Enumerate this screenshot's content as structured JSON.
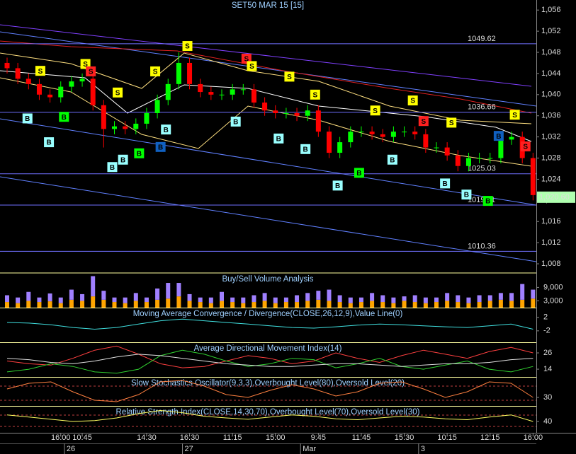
{
  "chart_data": {
    "type": "candlestick",
    "title": "SET50 MAR 15   [15]",
    "categories": [
      null,
      null,
      null,
      null,
      null,
      "16:00",
      null,
      "10:45",
      null,
      null,
      null,
      null,
      null,
      "14:30",
      null,
      null,
      null,
      "16:30",
      null,
      null,
      null,
      "11:15",
      null,
      null,
      null,
      "15:00",
      null,
      null,
      null,
      "9:45",
      null,
      null,
      null,
      "11:45",
      null,
      null,
      null,
      "15:30",
      null,
      null,
      null,
      "10:15",
      null,
      null,
      null,
      "12:15",
      null,
      null,
      null,
      "16:00"
    ],
    "dates": [
      null,
      null,
      null,
      null,
      null,
      null,
      "26",
      null,
      null,
      null,
      null,
      null,
      null,
      null,
      null,
      null,
      null,
      "27",
      null,
      null,
      null,
      null,
      null,
      null,
      null,
      null,
      null,
      null,
      "Mar",
      null,
      null,
      null,
      null,
      null,
      null,
      null,
      null,
      null,
      null,
      "3",
      null,
      null,
      null,
      null,
      null,
      null,
      null,
      null,
      null,
      null
    ],
    "open": [
      1046,
      1045,
      1043,
      1042,
      1040,
      1039.5,
      1041.5,
      1042.5,
      1043,
      1038,
      1033.5,
      1034,
      1033.5,
      1034.5,
      1036.5,
      1039,
      1042,
      1046,
      1042,
      1040.5,
      1040,
      1040,
      1041,
      1041,
      1038.5,
      1037,
      1036.5,
      1036.5,
      1036,
      1037,
      1033,
      1029,
      1031,
      1033,
      1033,
      1032.5,
      1032,
      1033,
      1033,
      1032.5,
      1030,
      1030,
      1028.5,
      1026.5,
      1028,
      1028,
      1028,
      1031.5,
      1032,
      1028
    ],
    "high": [
      1047,
      1046,
      1044,
      1043,
      1041,
      1042.5,
      1043.5,
      1044,
      1044,
      1039,
      1035,
      1035,
      1035.5,
      1037.5,
      1040,
      1043,
      1048,
      1047,
      1043,
      1041.5,
      1041,
      1042,
      1042,
      1042,
      1039.5,
      1038,
      1037.5,
      1037.5,
      1038,
      1038,
      1034,
      1032,
      1034,
      1034,
      1034,
      1033.5,
      1034,
      1034,
      1034,
      1033.5,
      1031,
      1031,
      1029.5,
      1029,
      1029,
      1029,
      1032.5,
      1033,
      1033,
      1029
    ],
    "low": [
      1044,
      1042,
      1041,
      1039,
      1038.5,
      1038.5,
      1040.5,
      1041.5,
      1037,
      1030,
      1032.5,
      1032.5,
      1032.5,
      1033.5,
      1035.5,
      1038,
      1041,
      1041,
      1039.5,
      1039,
      1039,
      1039,
      1040,
      1037.5,
      1036,
      1035.5,
      1035.5,
      1035,
      1035,
      1032,
      1028,
      1028,
      1030,
      1032,
      1031.5,
      1031,
      1031,
      1032,
      1031.5,
      1029,
      1029,
      1027.5,
      1025.5,
      1025.5,
      1027,
      1027,
      1027,
      1030.5,
      1027,
      1020
    ],
    "close": [
      1045,
      1043,
      1042,
      1040,
      1039.5,
      1041.5,
      1042.5,
      1043,
      1038,
      1033.5,
      1034,
      1033.5,
      1034.5,
      1036.5,
      1039,
      1042,
      1046,
      1042,
      1040.5,
      1040,
      1040,
      1041,
      1041,
      1038.5,
      1037,
      1036.5,
      1036.5,
      1036,
      1037,
      1033,
      1029,
      1031,
      1033,
      1033,
      1032.5,
      1032,
      1033,
      1033,
      1032.5,
      1030,
      1030,
      1028.5,
      1026.5,
      1028,
      1028,
      1028,
      1031.5,
      1032,
      1028,
      1021
    ],
    "up_color": "#00ff00",
    "down_color": "#ff0000",
    "ylim": [
      1006.4,
      1057.9
    ],
    "yticks": [
      {
        "value": 1056,
        "label": "1,056"
      },
      {
        "value": 1052,
        "label": "1,052"
      },
      {
        "value": 1048,
        "label": "1,048"
      },
      {
        "value": 1044,
        "label": "1,044"
      },
      {
        "value": 1040,
        "label": "1,040"
      },
      {
        "value": 1036,
        "label": "1,036"
      },
      {
        "value": 1032,
        "label": "1,032"
      },
      {
        "value": 1028,
        "label": "1,028"
      },
      {
        "value": 1024,
        "label": "1,024"
      },
      {
        "value": 1020,
        "label": "1,020"
      },
      {
        "value": 1016,
        "label": "1,016"
      },
      {
        "value": 1012,
        "label": "1,012"
      },
      {
        "value": 1008,
        "label": "1,008"
      }
    ],
    "levels": [
      1049.62,
      1036.66,
      1025.03,
      1019.11,
      1010.36
    ],
    "last_price": {
      "value": 1020.6,
      "label": "1,020.60"
    },
    "signals": [
      {
        "label": "S",
        "color": "#ffff00",
        "x": 3.1,
        "value": 1044.5
      },
      {
        "label": "S",
        "color": "#ffff00",
        "x": 7.3,
        "value": 1045.8
      },
      {
        "label": "S",
        "color": "#ff2020",
        "x": 7.8,
        "value": 1044.4
      },
      {
        "label": "S",
        "color": "#ffff00",
        "x": 10.3,
        "value": 1040.4
      },
      {
        "label": "S",
        "color": "#ffff00",
        "x": 13.8,
        "value": 1044.4
      },
      {
        "label": "S",
        "color": "#ffff00",
        "x": 16.8,
        "value": 1049.2
      },
      {
        "label": "S",
        "color": "#ff2020",
        "x": 22.3,
        "value": 1046.8
      },
      {
        "label": "S",
        "color": "#ffff00",
        "x": 22.8,
        "value": 1045.4
      },
      {
        "label": "S",
        "color": "#ffff00",
        "x": 26.3,
        "value": 1043.4
      },
      {
        "label": "S",
        "color": "#ffff00",
        "x": 28.7,
        "value": 1040
      },
      {
        "label": "S",
        "color": "#ffff00",
        "x": 34.3,
        "value": 1037
      },
      {
        "label": "S",
        "color": "#ffff00",
        "x": 37.8,
        "value": 1038.9
      },
      {
        "label": "S",
        "color": "#ff2020",
        "x": 38.8,
        "value": 1035
      },
      {
        "label": "S",
        "color": "#ffff00",
        "x": 41.4,
        "value": 1034.7
      },
      {
        "label": "S",
        "color": "#ffff00",
        "x": 47.3,
        "value": 1036.2
      },
      {
        "label": "S",
        "color": "#ff2020",
        "x": 48.3,
        "value": 1030.2
      },
      {
        "label": "B",
        "color": "#99ffff",
        "x": 1.9,
        "value": 1035.5
      },
      {
        "label": "B",
        "color": "#99ffff",
        "x": 3.9,
        "value": 1031
      },
      {
        "label": "B",
        "color": "#00ff00",
        "x": 5.3,
        "value": 1035.8
      },
      {
        "label": "B",
        "color": "#99ffff",
        "x": 9.8,
        "value": 1026.3
      },
      {
        "label": "B",
        "color": "#99ffff",
        "x": 10.8,
        "value": 1027.7
      },
      {
        "label": "B",
        "color": "#00ff00",
        "x": 12.3,
        "value": 1028.9
      },
      {
        "label": "B",
        "color": "#1060c0",
        "x": 14.3,
        "value": 1030.1
      },
      {
        "label": "B",
        "color": "#99ffff",
        "x": 14.8,
        "value": 1033.4
      },
      {
        "label": "B",
        "color": "#99ffff",
        "x": 21.3,
        "value": 1034.9
      },
      {
        "label": "B",
        "color": "#99ffff",
        "x": 25.3,
        "value": 1031.7
      },
      {
        "label": "B",
        "color": "#99ffff",
        "x": 27.8,
        "value": 1029.7
      },
      {
        "label": "B",
        "color": "#99ffff",
        "x": 30.8,
        "value": 1022.8
      },
      {
        "label": "B",
        "color": "#00ff00",
        "x": 32.8,
        "value": 1025.2
      },
      {
        "label": "B",
        "color": "#99ffff",
        "x": 35.9,
        "value": 1027.7
      },
      {
        "label": "B",
        "color": "#99ffff",
        "x": 40.8,
        "value": 1023.2
      },
      {
        "label": "B",
        "color": "#99ffff",
        "x": 42.8,
        "value": 1021.1
      },
      {
        "label": "B",
        "color": "#00ff00",
        "x": 44.8,
        "value": 1019.9
      },
      {
        "label": "B",
        "color": "#1060c0",
        "x": 45.8,
        "value": 1032.2
      }
    ],
    "panels": [
      {
        "type": "bar",
        "title": "Buy/Sell Volume Analysis",
        "ylim": [
          0,
          15100
        ],
        "yticks": [
          {
            "value": 9000,
            "label": "9,000"
          },
          {
            "value": 3000,
            "label": "3,000"
          }
        ],
        "series": [
          {
            "color": "#ffa500",
            "values": [
              2500,
              2000,
              3000,
              2500,
              2800,
              2000,
              3500,
              3000,
              5000,
              3500,
              2500,
              2000,
              3000,
              2500,
              3500,
              4000,
              5000,
              3000,
              2500,
              2000,
              3000,
              2500,
              2000,
              2500,
              3000,
              2000,
              2500,
              2500,
              3000,
              3500,
              3000,
              2500,
              2000,
              2500,
              3000,
              2500,
              2000,
              3000,
              2500,
              2000,
              2500,
              3000,
              2500,
              2000,
              2500,
              3000,
              3500,
              3000,
              3500,
              4000
            ]
          },
          {
            "color": "#a080ff",
            "values": [
              3000,
              2500,
              4000,
              2000,
              3500,
              2500,
              4500,
              3000,
              9000,
              4000,
              2000,
              2500,
              3500,
              2000,
              5000,
              7000,
              6000,
              3000,
              2000,
              2500,
              4000,
              2000,
              2500,
              3000,
              3500,
              2500,
              2000,
              3000,
              3500,
              4000,
              5000,
              3000,
              2500,
              2000,
              3500,
              3000,
              2500,
              2000,
              3000,
              2500,
              2000,
              3500,
              3000,
              2500,
              3000,
              2500,
              3000,
              3500,
              7000,
              4000
            ]
          }
        ]
      },
      {
        "type": "line",
        "title": "Moving Average Convergence / Divergence(CLOSE,26,12,9),Value Line(0)",
        "ylim": [
          -5.4,
          4.7
        ],
        "yticks": [
          2,
          -2
        ],
        "series": [
          {
            "color": "#40e0e0",
            "values": [
              0.5,
              0.3,
              -0.2,
              -1,
              -1.5,
              -1,
              0,
              1,
              1.5,
              1,
              0.5,
              0,
              -0.5,
              -1,
              -1.2,
              -0.8,
              -0.3,
              0,
              -0.2,
              -0.5,
              -0.8,
              -1,
              -0.5,
              0,
              -1.5
            ]
          }
        ]
      },
      {
        "type": "line",
        "title": "Average Directional Movement Index(14)",
        "ylim": [
          8.3,
          33.3
        ],
        "yticks": [
          26,
          14
        ],
        "series": [
          {
            "color": "#ff4040",
            "values": [
              20,
              18,
              17,
              22,
              28,
              31,
              25,
              18,
              15,
              16,
              20,
              24,
              22,
              18,
              20,
              26,
              22,
              19,
              24,
              28,
              25,
              22,
              27,
              30,
              26
            ]
          },
          {
            "color": "#30d030",
            "values": [
              12,
              14,
              18,
              16,
              12,
              11,
              14,
              24,
              28,
              25,
              20,
              16,
              18,
              22,
              21,
              15,
              18,
              22,
              16,
              14,
              17,
              20,
              14,
              12,
              16
            ]
          },
          {
            "color": "#e0e0e0",
            "values": [
              22,
              21,
              19,
              18,
              20,
              23,
              25,
              24,
              22,
              20,
              18,
              17,
              16,
              16,
              17,
              18,
              18,
              17,
              16,
              17,
              18,
              18,
              19,
              21,
              22
            ]
          }
        ]
      },
      {
        "type": "line",
        "title": "Slow Stochastics Oscillator(9,3,3),Overbought Level(80),Oversold Level(20)",
        "ylim": [
          0,
          100
        ],
        "yticks": [
          30
        ],
        "series": [
          {
            "color": "#ff8040",
            "values": [
              60,
              80,
              85,
              50,
              20,
              15,
              40,
              85,
              90,
              70,
              40,
              30,
              55,
              75,
              60,
              35,
              50,
              80,
              85,
              60,
              30,
              50,
              85,
              80,
              30
            ]
          }
        ]
      },
      {
        "type": "line",
        "title": "Relative Strength Index(CLOSE,14,30,70),Overbought Level(70),Oversold Level(30)",
        "ylim": [
          14,
          74
        ],
        "yticks": [
          40
        ],
        "series": [
          {
            "color": "#ffff60",
            "values": [
              55,
              50,
              45,
              40,
              42,
              48,
              58,
              65,
              60,
              52,
              48,
              45,
              50,
              55,
              52,
              46,
              44,
              48,
              52,
              50,
              46,
              44,
              50,
              55,
              40
            ]
          }
        ]
      }
    ]
  }
}
